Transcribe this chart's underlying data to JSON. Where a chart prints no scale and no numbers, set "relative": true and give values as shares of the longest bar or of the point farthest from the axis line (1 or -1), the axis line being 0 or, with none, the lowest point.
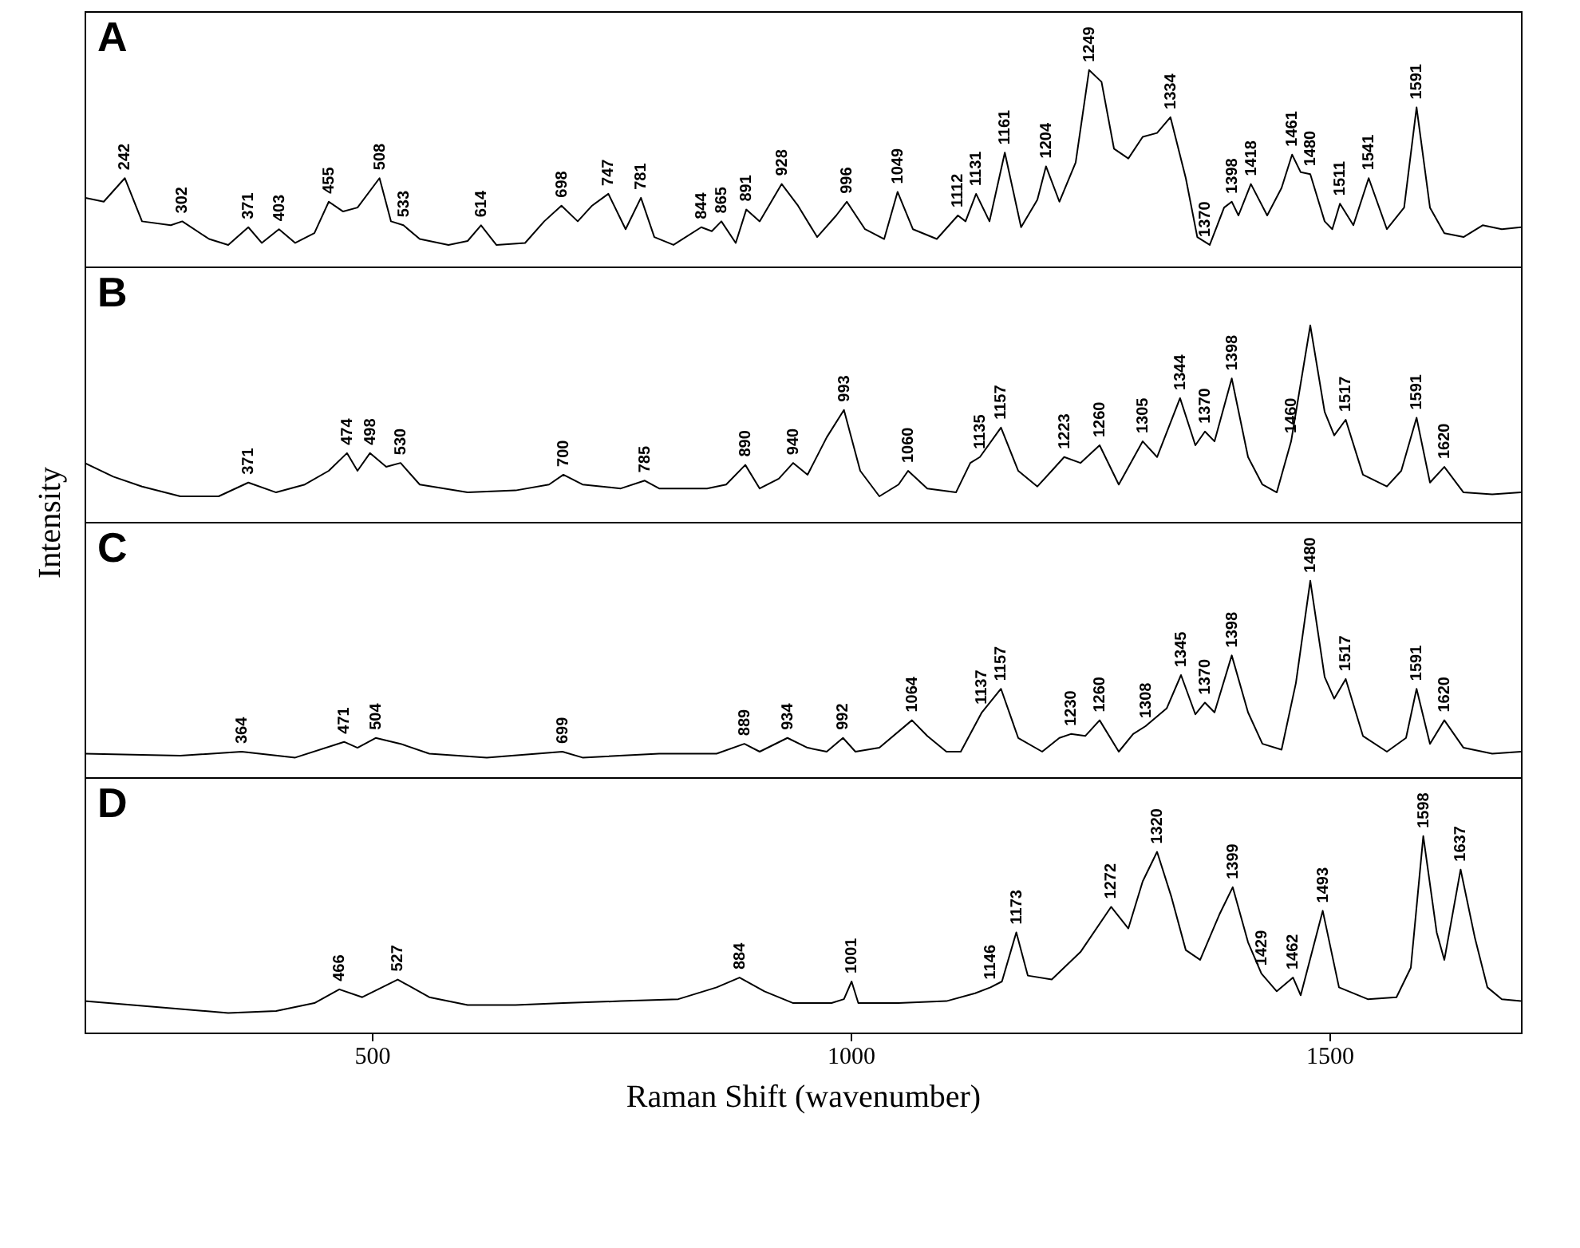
{
  "chart_data": [
    {
      "type": "line",
      "title": "A",
      "relative": true,
      "xlim": [
        200,
        1700
      ],
      "xticks": [
        500,
        1000,
        1500
      ],
      "tick_labels": false,
      "x": [
        200,
        220,
        242,
        260,
        290,
        302,
        330,
        350,
        371,
        385,
        403,
        420,
        440,
        455,
        470,
        485,
        508,
        520,
        533,
        550,
        580,
        600,
        614,
        630,
        660,
        680,
        698,
        715,
        730,
        747,
        765,
        781,
        795,
        815,
        844,
        855,
        865,
        880,
        891,
        905,
        928,
        945,
        965,
        985,
        996,
        1015,
        1035,
        1049,
        1065,
        1090,
        1112,
        1120,
        1131,
        1145,
        1161,
        1178,
        1195,
        1204,
        1218,
        1235,
        1249,
        1262,
        1275,
        1290,
        1305,
        1320,
        1334,
        1350,
        1362,
        1375,
        1390,
        1398,
        1405,
        1418,
        1435,
        1450,
        1461,
        1470,
        1480,
        1495,
        1503,
        1511,
        1525,
        1541,
        1560,
        1578,
        1591,
        1605,
        1620,
        1640,
        1660,
        1680,
        1700
      ],
      "series": [
        {
          "color": "#000000",
          "values": [
            0.35,
            0.33,
            0.45,
            0.23,
            0.21,
            0.23,
            0.14,
            0.11,
            0.2,
            0.12,
            0.19,
            0.12,
            0.17,
            0.33,
            0.28,
            0.3,
            0.45,
            0.23,
            0.21,
            0.14,
            0.11,
            0.13,
            0.21,
            0.11,
            0.12,
            0.23,
            0.31,
            0.23,
            0.31,
            0.37,
            0.19,
            0.35,
            0.15,
            0.11,
            0.2,
            0.18,
            0.23,
            0.12,
            0.29,
            0.23,
            0.42,
            0.31,
            0.15,
            0.26,
            0.33,
            0.19,
            0.14,
            0.38,
            0.19,
            0.14,
            0.26,
            0.23,
            0.37,
            0.23,
            0.58,
            0.2,
            0.34,
            0.51,
            0.33,
            0.53,
            1.0,
            0.94,
            0.6,
            0.55,
            0.66,
            0.68,
            0.76,
            0.45,
            0.15,
            0.11,
            0.3,
            0.33,
            0.26,
            0.42,
            0.26,
            0.4,
            0.57,
            0.48,
            0.47,
            0.23,
            0.19,
            0.32,
            0.21,
            0.45,
            0.19,
            0.3,
            0.81,
            0.3,
            0.17,
            0.15,
            0.21,
            0.19,
            0.2
          ]
        }
      ],
      "annotations": [
        {
          "text": "242",
          "x": 242,
          "y": 0.45
        },
        {
          "text": "302",
          "x": 302,
          "y": 0.23
        },
        {
          "text": "371",
          "x": 371,
          "y": 0.2
        },
        {
          "text": "403",
          "x": 403,
          "y": 0.19
        },
        {
          "text": "455",
          "x": 455,
          "y": 0.33
        },
        {
          "text": "508",
          "x": 508,
          "y": 0.45
        },
        {
          "text": "533",
          "x": 533,
          "y": 0.21
        },
        {
          "text": "614",
          "x": 614,
          "y": 0.21
        },
        {
          "text": "698",
          "x": 698,
          "y": 0.31
        },
        {
          "text": "747",
          "x": 747,
          "y": 0.37
        },
        {
          "text": "781",
          "x": 781,
          "y": 0.35
        },
        {
          "text": "844",
          "x": 844,
          "y": 0.2
        },
        {
          "text": "865",
          "x": 865,
          "y": 0.23
        },
        {
          "text": "891",
          "x": 891,
          "y": 0.29
        },
        {
          "text": "928",
          "x": 928,
          "y": 0.42
        },
        {
          "text": "996",
          "x": 996,
          "y": 0.33
        },
        {
          "text": "1049",
          "x": 1049,
          "y": 0.38
        },
        {
          "text": "1112",
          "x": 1112,
          "y": 0.26
        },
        {
          "text": "1131",
          "x": 1131,
          "y": 0.37
        },
        {
          "text": "1161",
          "x": 1161,
          "y": 0.58
        },
        {
          "text": "1204",
          "x": 1204,
          "y": 0.51
        },
        {
          "text": "1249",
          "x": 1249,
          "y": 1.0
        },
        {
          "text": "1334",
          "x": 1334,
          "y": 0.76
        },
        {
          "text": "1370",
          "x": 1370,
          "y": 0.11
        },
        {
          "text": "1398",
          "x": 1398,
          "y": 0.33
        },
        {
          "text": "1418",
          "x": 1418,
          "y": 0.42
        },
        {
          "text": "1461",
          "x": 1461,
          "y": 0.57
        },
        {
          "text": "1480",
          "x": 1480,
          "y": 0.47
        },
        {
          "text": "1511",
          "x": 1511,
          "y": 0.32
        },
        {
          "text": "1541",
          "x": 1541,
          "y": 0.45
        },
        {
          "text": "1591",
          "x": 1591,
          "y": 0.81
        }
      ]
    },
    {
      "type": "line",
      "title": "B",
      "ylabel": "Intensity",
      "relative": true,
      "xlim": [
        200,
        1700
      ],
      "xticks": [
        500,
        1000,
        1500
      ],
      "tick_labels": false,
      "x": [
        200,
        230,
        260,
        300,
        340,
        371,
        400,
        430,
        455,
        474,
        485,
        498,
        515,
        530,
        550,
        600,
        650,
        685,
        700,
        720,
        760,
        785,
        800,
        850,
        870,
        890,
        905,
        925,
        940,
        955,
        975,
        993,
        1010,
        1030,
        1050,
        1060,
        1080,
        1110,
        1125,
        1135,
        1157,
        1175,
        1195,
        1210,
        1223,
        1240,
        1260,
        1280,
        1305,
        1320,
        1344,
        1360,
        1370,
        1380,
        1398,
        1415,
        1430,
        1445,
        1460,
        1480,
        1495,
        1505,
        1517,
        1535,
        1560,
        1575,
        1591,
        1605,
        1620,
        1640,
        1670,
        1700
      ],
      "series": [
        {
          "color": "#000000",
          "values": [
            0.3,
            0.23,
            0.18,
            0.13,
            0.13,
            0.2,
            0.15,
            0.19,
            0.26,
            0.35,
            0.26,
            0.35,
            0.28,
            0.3,
            0.19,
            0.15,
            0.16,
            0.19,
            0.24,
            0.19,
            0.17,
            0.21,
            0.17,
            0.17,
            0.19,
            0.29,
            0.17,
            0.22,
            0.3,
            0.24,
            0.43,
            0.57,
            0.26,
            0.13,
            0.19,
            0.26,
            0.17,
            0.15,
            0.3,
            0.33,
            0.48,
            0.26,
            0.18,
            0.26,
            0.33,
            0.3,
            0.39,
            0.19,
            0.41,
            0.33,
            0.63,
            0.39,
            0.46,
            0.41,
            0.73,
            0.33,
            0.19,
            0.15,
            0.41,
            1.0,
            0.56,
            0.44,
            0.52,
            0.24,
            0.18,
            0.26,
            0.53,
            0.2,
            0.28,
            0.15,
            0.14,
            0.15
          ]
        }
      ],
      "annotations": [
        {
          "text": "371",
          "x": 371,
          "y": 0.2
        },
        {
          "text": "474",
          "x": 474,
          "y": 0.35
        },
        {
          "text": "498",
          "x": 498,
          "y": 0.35
        },
        {
          "text": "530",
          "x": 530,
          "y": 0.3
        },
        {
          "text": "700",
          "x": 700,
          "y": 0.24
        },
        {
          "text": "785",
          "x": 785,
          "y": 0.21
        },
        {
          "text": "890",
          "x": 890,
          "y": 0.29
        },
        {
          "text": "940",
          "x": 940,
          "y": 0.3
        },
        {
          "text": "993",
          "x": 993,
          "y": 0.57
        },
        {
          "text": "1060",
          "x": 1060,
          "y": 0.26
        },
        {
          "text": "1135",
          "x": 1135,
          "y": 0.33
        },
        {
          "text": "1157",
          "x": 1157,
          "y": 0.48
        },
        {
          "text": "1223",
          "x": 1223,
          "y": 0.33
        },
        {
          "text": "1260",
          "x": 1260,
          "y": 0.39
        },
        {
          "text": "1305",
          "x": 1305,
          "y": 0.41
        },
        {
          "text": "1344",
          "x": 1344,
          "y": 0.63
        },
        {
          "text": "1370",
          "x": 1370,
          "y": 0.46
        },
        {
          "text": "1398",
          "x": 1398,
          "y": 0.73
        },
        {
          "text": "1460",
          "x": 1460,
          "y": 0.41
        },
        {
          "text": "1517",
          "x": 1517,
          "y": 0.52
        },
        {
          "text": "1591",
          "x": 1591,
          "y": 0.53
        },
        {
          "text": "1620",
          "x": 1620,
          "y": 0.28
        }
      ]
    },
    {
      "type": "line",
      "title": "C",
      "relative": true,
      "xlim": [
        200,
        1700
      ],
      "xticks": [
        500,
        1000,
        1500
      ],
      "tick_labels": false,
      "x": [
        200,
        300,
        364,
        420,
        471,
        485,
        504,
        530,
        560,
        620,
        699,
        720,
        800,
        860,
        889,
        905,
        934,
        955,
        975,
        992,
        1005,
        1030,
        1064,
        1080,
        1100,
        1115,
        1137,
        1157,
        1175,
        1200,
        1218,
        1230,
        1245,
        1260,
        1280,
        1295,
        1308,
        1330,
        1345,
        1360,
        1370,
        1380,
        1398,
        1415,
        1430,
        1450,
        1465,
        1480,
        1495,
        1505,
        1517,
        1535,
        1560,
        1580,
        1591,
        1605,
        1620,
        1640,
        1670,
        1700
      ],
      "series": [
        {
          "color": "#000000",
          "values": [
            0.12,
            0.11,
            0.13,
            0.1,
            0.18,
            0.15,
            0.2,
            0.17,
            0.12,
            0.1,
            0.13,
            0.1,
            0.12,
            0.12,
            0.17,
            0.13,
            0.2,
            0.15,
            0.13,
            0.2,
            0.13,
            0.15,
            0.29,
            0.21,
            0.13,
            0.13,
            0.33,
            0.45,
            0.2,
            0.13,
            0.2,
            0.22,
            0.21,
            0.29,
            0.13,
            0.22,
            0.26,
            0.35,
            0.52,
            0.32,
            0.38,
            0.33,
            0.62,
            0.33,
            0.17,
            0.14,
            0.48,
            1.0,
            0.51,
            0.4,
            0.5,
            0.21,
            0.13,
            0.2,
            0.45,
            0.17,
            0.29,
            0.15,
            0.12,
            0.13
          ]
        }
      ],
      "annotations": [
        {
          "text": "364",
          "x": 364,
          "y": 0.13
        },
        {
          "text": "471",
          "x": 471,
          "y": 0.18
        },
        {
          "text": "504",
          "x": 504,
          "y": 0.2
        },
        {
          "text": "699",
          "x": 699,
          "y": 0.13
        },
        {
          "text": "889",
          "x": 889,
          "y": 0.17
        },
        {
          "text": "934",
          "x": 934,
          "y": 0.2
        },
        {
          "text": "992",
          "x": 992,
          "y": 0.2
        },
        {
          "text": "1064",
          "x": 1064,
          "y": 0.29
        },
        {
          "text": "1137",
          "x": 1137,
          "y": 0.33
        },
        {
          "text": "1157",
          "x": 1157,
          "y": 0.45
        },
        {
          "text": "1230",
          "x": 1230,
          "y": 0.22
        },
        {
          "text": "1260",
          "x": 1260,
          "y": 0.29
        },
        {
          "text": "1308",
          "x": 1308,
          "y": 0.26
        },
        {
          "text": "1345",
          "x": 1345,
          "y": 0.52
        },
        {
          "text": "1370",
          "x": 1370,
          "y": 0.38
        },
        {
          "text": "1398",
          "x": 1398,
          "y": 0.62
        },
        {
          "text": "1480",
          "x": 1480,
          "y": 1.0
        },
        {
          "text": "1517",
          "x": 1517,
          "y": 0.5
        },
        {
          "text": "1591",
          "x": 1591,
          "y": 0.45
        },
        {
          "text": "1620",
          "x": 1620,
          "y": 0.29
        }
      ]
    },
    {
      "type": "line",
      "title": "D",
      "xlabel": "Raman Shift (wavenumber)",
      "relative": true,
      "xlim": [
        200,
        1700
      ],
      "xticks": [
        500,
        1000,
        1500
      ],
      "tick_labels": "x",
      "x": [
        200,
        250,
        300,
        350,
        400,
        440,
        466,
        490,
        527,
        560,
        600,
        650,
        700,
        760,
        820,
        860,
        884,
        910,
        940,
        980,
        993,
        1001,
        1008,
        1050,
        1100,
        1130,
        1146,
        1158,
        1173,
        1185,
        1210,
        1240,
        1272,
        1290,
        1305,
        1320,
        1335,
        1350,
        1365,
        1385,
        1399,
        1415,
        1429,
        1445,
        1462,
        1470,
        1493,
        1510,
        1540,
        1570,
        1585,
        1598,
        1612,
        1620,
        1637,
        1652,
        1665,
        1680,
        1700
      ],
      "series": [
        {
          "color": "#000000",
          "values": [
            0.16,
            0.14,
            0.12,
            0.1,
            0.11,
            0.15,
            0.22,
            0.18,
            0.27,
            0.18,
            0.14,
            0.14,
            0.15,
            0.16,
            0.17,
            0.23,
            0.28,
            0.21,
            0.15,
            0.15,
            0.17,
            0.26,
            0.15,
            0.15,
            0.16,
            0.2,
            0.23,
            0.26,
            0.51,
            0.29,
            0.27,
            0.41,
            0.64,
            0.53,
            0.77,
            0.92,
            0.69,
            0.42,
            0.37,
            0.6,
            0.74,
            0.46,
            0.3,
            0.21,
            0.28,
            0.19,
            0.62,
            0.23,
            0.17,
            0.18,
            0.33,
            1.0,
            0.51,
            0.37,
            0.83,
            0.48,
            0.23,
            0.17,
            0.16
          ]
        }
      ],
      "annotations": [
        {
          "text": "466",
          "x": 466,
          "y": 0.22
        },
        {
          "text": "527",
          "x": 527,
          "y": 0.27
        },
        {
          "text": "884",
          "x": 884,
          "y": 0.28
        },
        {
          "text": "1001",
          "x": 1001,
          "y": 0.26
        },
        {
          "text": "1146",
          "x": 1146,
          "y": 0.23
        },
        {
          "text": "1173",
          "x": 1173,
          "y": 0.51
        },
        {
          "text": "1272",
          "x": 1272,
          "y": 0.64
        },
        {
          "text": "1320",
          "x": 1320,
          "y": 0.92
        },
        {
          "text": "1399",
          "x": 1399,
          "y": 0.74
        },
        {
          "text": "1429",
          "x": 1429,
          "y": 0.3
        },
        {
          "text": "1462",
          "x": 1462,
          "y": 0.28
        },
        {
          "text": "1493",
          "x": 1493,
          "y": 0.62
        },
        {
          "text": "1598",
          "x": 1598,
          "y": 1.0
        },
        {
          "text": "1637",
          "x": 1637,
          "y": 0.83
        }
      ]
    }
  ]
}
